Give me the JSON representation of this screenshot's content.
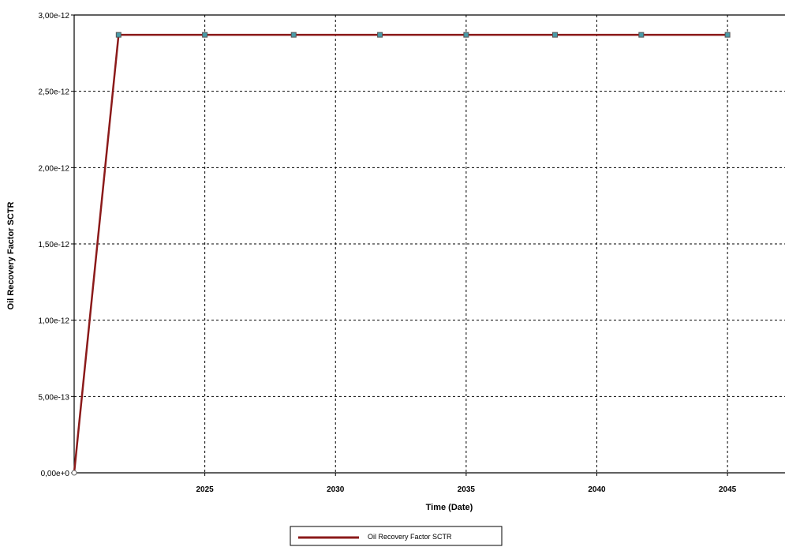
{
  "chart_data": {
    "type": "line",
    "xlabel": "Time (Date)",
    "ylabel": "Oil Recovery Factor SCTR",
    "xlim": [
      2020.0,
      2047.2
    ],
    "ylim": [
      0,
      3e-12
    ],
    "x_ticks": [
      2025,
      2030,
      2035,
      2040,
      2045
    ],
    "x_tick_labels": [
      "2025",
      "2030",
      "2035",
      "2040",
      "2045"
    ],
    "y_ticks": [
      0,
      5e-13,
      1e-12,
      1.5e-12,
      2e-12,
      2.5e-12,
      3e-12
    ],
    "y_tick_labels": [
      "0,00e+0",
      "5,00e-13",
      "1,00e-12",
      "1,50e-12",
      "2,00e-12",
      "2,50e-12",
      "3,00e-12"
    ],
    "grid": true,
    "legend_position": "bottom-center",
    "series": [
      {
        "name": "Oil Recovery Factor SCTR",
        "color": "#8b1a1a",
        "marker_color": "#4a9ba8",
        "x": [
          2020.0,
          2021.7,
          2025.0,
          2028.4,
          2031.7,
          2035.0,
          2038.4,
          2041.7,
          2045.0
        ],
        "y": [
          0,
          2.87e-12,
          2.87e-12,
          2.87e-12,
          2.87e-12,
          2.87e-12,
          2.87e-12,
          2.87e-12,
          2.87e-12
        ]
      }
    ]
  }
}
